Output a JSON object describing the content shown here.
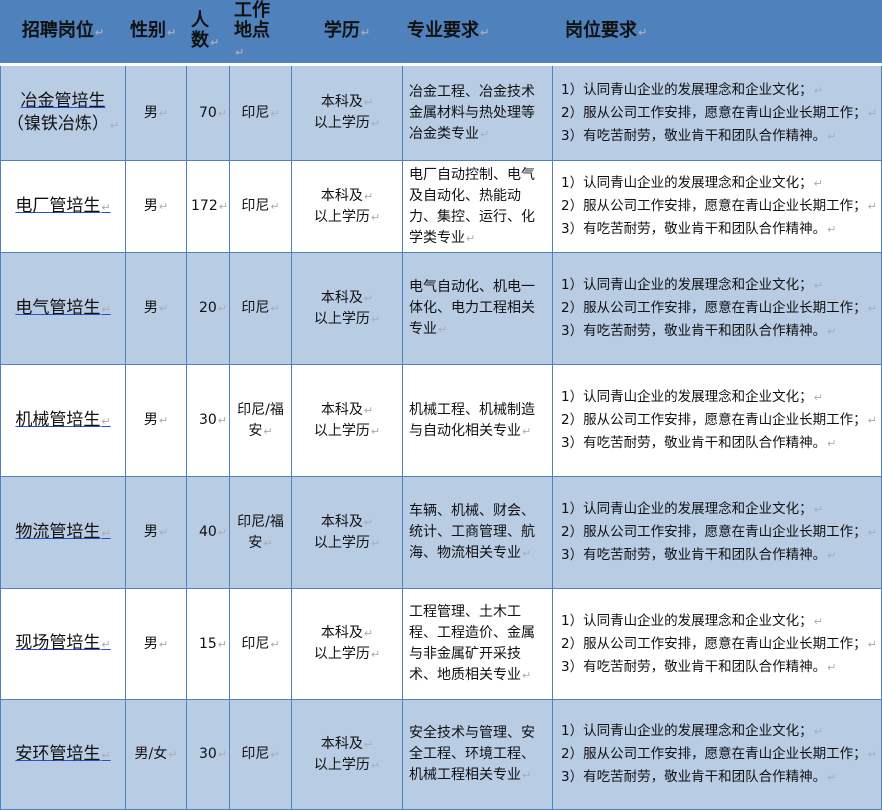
{
  "headers": [
    "招聘岗位",
    "性别",
    "人数",
    "工作地点",
    "学历",
    "专业要求",
    "岗位要求"
  ],
  "header_lines": {
    "count": [
      "人",
      "数"
    ],
    "location": [
      "工作",
      "地点"
    ]
  },
  "rows": [
    {
      "position": "冶金管培生",
      "position_note": "（镍铁冶炼）",
      "gender": "男",
      "count": "70",
      "location": "印尼",
      "education": [
        "本科及",
        "以上学历"
      ],
      "major": "冶金工程、冶金技术金属材料与热处理等冶金类专业",
      "requirements": [
        "1）认同青山企业的发展理念和企业文化；",
        "2）服从公司工作安排，愿意在青山企业长期工作；",
        "3）有吃苦耐劳，敬业肯干和团队合作精神。"
      ]
    },
    {
      "position": "电厂管培生",
      "gender": "男",
      "count": "172",
      "location": "印尼",
      "education": [
        "本科及",
        "以上学历"
      ],
      "major": "电厂自动控制、电气及自动化、热能动力、集控、运行、化学类专业",
      "requirements": [
        "1）认同青山企业的发展理念和企业文化；",
        "2）服从公司工作安排，愿意在青山企业长期工作；",
        "3）有吃苦耐劳，敬业肯干和团队合作精神。"
      ]
    },
    {
      "position": "电气管培生",
      "gender": "男",
      "count": "20",
      "location": "印尼",
      "education": [
        "本科及",
        "以上学历"
      ],
      "major": "电气自动化、机电一体化、电力工程相关专业",
      "requirements": [
        "1）认同青山企业的发展理念和企业文化；",
        "2）服从公司工作安排，愿意在青山企业长期工作；",
        "3）有吃苦耐劳，敬业肯干和团队合作精神。"
      ]
    },
    {
      "position": "机械管培生",
      "gender": "男",
      "count": "30",
      "location": "印尼/福安",
      "education": [
        "本科及",
        "以上学历"
      ],
      "major": "机械工程、机械制造与自动化相关专业",
      "requirements": [
        "1）认同青山企业的发展理念和企业文化；",
        "2）服从公司工作安排，愿意在青山企业长期工作；",
        "3）有吃苦耐劳，敬业肯干和团队合作精神。"
      ]
    },
    {
      "position": "物流管培生",
      "gender": "男",
      "count": "40",
      "location": "印尼/福安",
      "education": [
        "本科及",
        "以上学历"
      ],
      "major": "车辆、机械、财会、统计、工商管理、航海、物流相关专业",
      "requirements": [
        "1）认同青山企业的发展理念和企业文化；",
        "2）服从公司工作安排，愿意在青山企业长期工作；",
        "3）有吃苦耐劳，敬业肯干和团队合作精神。"
      ]
    },
    {
      "position": "现场管培生",
      "gender": "男",
      "count": "15",
      "location": "印尼",
      "education": [
        "本科及",
        "以上学历"
      ],
      "major": "工程管理、土木工程、工程造价、金属与非金属矿开采技术、地质相关专业",
      "requirements": [
        "1）认同青山企业的发展理念和企业文化；",
        "2）服从公司工作安排，愿意在青山企业长期工作；",
        "3）有吃苦耐劳，敬业肯干和团队合作精神。"
      ]
    },
    {
      "position": "安环管培生",
      "gender": "男/女",
      "count": "30",
      "location": "印尼",
      "education": [
        "本科及",
        "以上学历"
      ],
      "major": "安全技术与管理、安全工程、环境工程、机械工程相关专业",
      "requirements": [
        "1）认同青山企业的发展理念和企业文化；",
        "2）服从公司工作安排，愿意在青山企业长期工作；",
        "3）有吃苦耐劳，敬业肯干和团队合作精神。"
      ]
    }
  ],
  "colors": {
    "header": "#4f81bd",
    "shaded_row": "#b8cce4",
    "border": "#4f81bd"
  }
}
